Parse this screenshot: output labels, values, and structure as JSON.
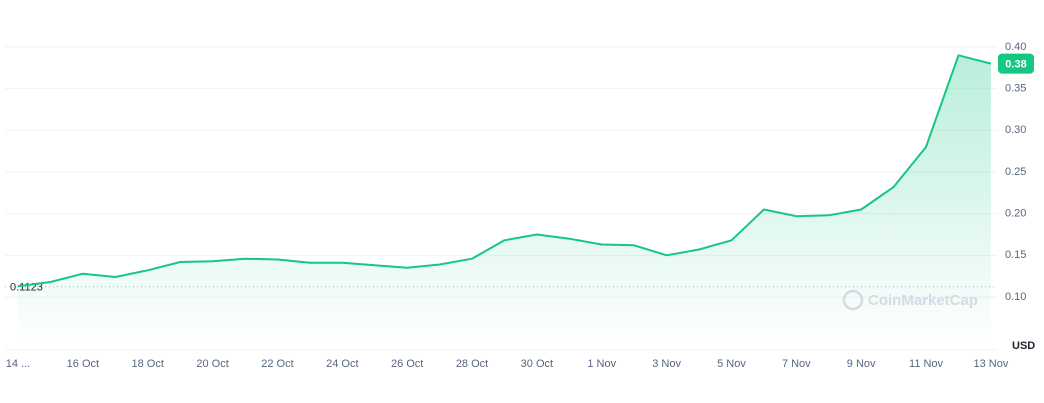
{
  "chart_data": {
    "type": "line",
    "x": [
      "14 ...",
      null,
      "16 Oct",
      null,
      "18 Oct",
      null,
      "20 Oct",
      null,
      "22 Oct",
      null,
      "24 Oct",
      null,
      "26 Oct",
      null,
      "28 Oct",
      null,
      "30 Oct",
      null,
      "1 Nov",
      null,
      "3 Nov",
      null,
      "5 Nov",
      null,
      "7 Nov",
      null,
      "9 Nov",
      null,
      "11 Nov",
      null,
      "13 Nov"
    ],
    "series": [
      {
        "color": "#16c784",
        "values": [
          0.113,
          0.118,
          0.128,
          0.124,
          0.132,
          0.142,
          0.143,
          0.146,
          0.145,
          0.141,
          0.141,
          0.138,
          0.135,
          0.139,
          0.146,
          0.168,
          0.175,
          0.17,
          0.163,
          0.162,
          0.15,
          0.157,
          0.168,
          0.205,
          0.197,
          0.198,
          0.205,
          0.232,
          0.28,
          0.39,
          0.38
        ]
      }
    ],
    "ylim": [
      0.04,
      0.45
    ],
    "yticks": [
      {
        "value": 0.1,
        "label": "0.10"
      },
      0.15,
      {
        "value": 0.2,
        "label": "0.20"
      },
      0.25,
      {
        "value": 0.3,
        "label": "0.30"
      },
      0.35,
      {
        "value": 0.4,
        "label": "0.40"
      }
    ],
    "grid": true,
    "reference": 0.1123,
    "current_price": 0.38,
    "currency": "USD",
    "watermark": "CoinMarketCap"
  }
}
